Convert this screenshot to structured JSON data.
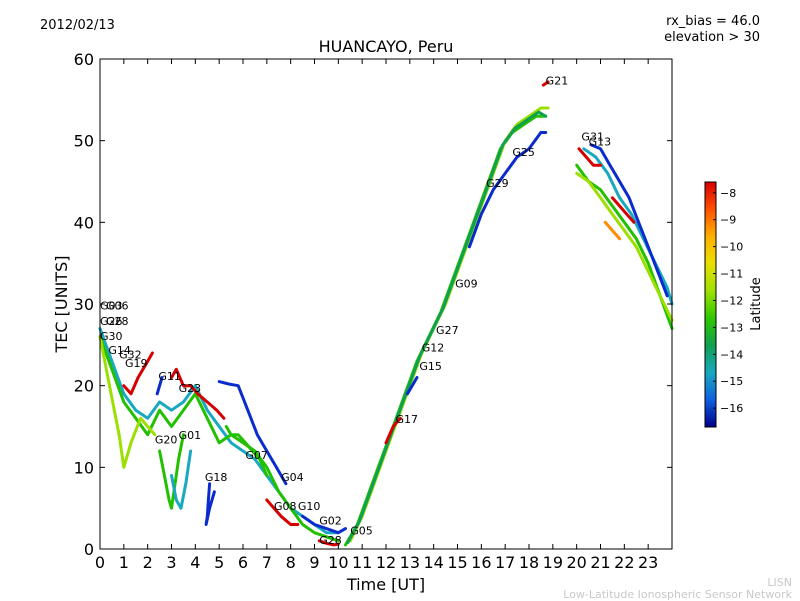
{
  "header": {
    "date": "2012/02/13",
    "bias_line1": "rx_bias = 46.0",
    "bias_line2": "elevation > 30"
  },
  "footer": {
    "line1": "LISN",
    "line2": "Low-Latitude Ionospheric Sensor Network"
  },
  "colors": {
    "red": "#d70000",
    "orange": "#ff8c00",
    "yellow": "#e8e000",
    "lightgreen": "#9be000",
    "green": "#22c000",
    "darkgreen": "#10a050",
    "cyan": "#18a8c0",
    "blue": "#0a2ccc",
    "darkblue": "#00008b"
  },
  "chart_data": {
    "type": "scatter",
    "title": "HUANCAYO, Peru",
    "xlabel": "Time [UT]",
    "ylabel": "TEC [UNITS]",
    "xlim": [
      0,
      24
    ],
    "ylim": [
      0,
      60
    ],
    "xticks": [
      0,
      1,
      2,
      3,
      4,
      5,
      6,
      7,
      8,
      9,
      10,
      11,
      12,
      13,
      14,
      15,
      16,
      17,
      18,
      19,
      20,
      21,
      22,
      23
    ],
    "yticks": [
      0,
      10,
      20,
      30,
      40,
      50,
      60
    ],
    "colorbar": {
      "label": "Latitude",
      "range": [
        -16.7,
        -7.6
      ],
      "ticks": [
        -8,
        -9,
        -10,
        -11,
        -12,
        -13,
        -14,
        -15,
        -16
      ]
    },
    "satellite_labels": [
      {
        "text": "G03",
        "x": 0.0,
        "y": 29.3
      },
      {
        "text": "G06",
        "x": 0.25,
        "y": 29.3
      },
      {
        "text": "G26",
        "x": 0.0,
        "y": 27.4
      },
      {
        "text": "G28",
        "x": 0.25,
        "y": 27.4
      },
      {
        "text": "G30",
        "x": 0.0,
        "y": 25.6
      },
      {
        "text": "G14",
        "x": 0.35,
        "y": 23.9
      },
      {
        "text": "G32",
        "x": 0.8,
        "y": 23.3
      },
      {
        "text": "G19",
        "x": 1.05,
        "y": 22.3
      },
      {
        "text": "G11",
        "x": 2.45,
        "y": 20.7
      },
      {
        "text": "G23",
        "x": 3.3,
        "y": 19.2
      },
      {
        "text": "G01",
        "x": 3.3,
        "y": 13.5
      },
      {
        "text": "G20",
        "x": 2.3,
        "y": 12.9
      },
      {
        "text": "G18",
        "x": 4.4,
        "y": 8.3
      },
      {
        "text": "G07",
        "x": 6.1,
        "y": 11.0
      },
      {
        "text": "G04",
        "x": 7.6,
        "y": 8.3
      },
      {
        "text": "G08",
        "x": 7.3,
        "y": 4.8
      },
      {
        "text": "G10",
        "x": 8.3,
        "y": 4.8
      },
      {
        "text": "G02",
        "x": 9.2,
        "y": 3.0
      },
      {
        "text": "G28",
        "x": 9.2,
        "y": 0.6
      },
      {
        "text": "G05",
        "x": 10.5,
        "y": 1.8
      },
      {
        "text": "G17",
        "x": 12.4,
        "y": 15.4
      },
      {
        "text": "G15",
        "x": 13.4,
        "y": 21.9
      },
      {
        "text": "G12",
        "x": 13.5,
        "y": 24.2
      },
      {
        "text": "G27",
        "x": 14.1,
        "y": 26.3
      },
      {
        "text": "G09",
        "x": 14.9,
        "y": 32.0
      },
      {
        "text": "G29",
        "x": 16.2,
        "y": 44.3
      },
      {
        "text": "G25",
        "x": 17.3,
        "y": 48.1
      },
      {
        "text": "G21",
        "x": 18.7,
        "y": 56.9
      },
      {
        "text": "G31",
        "x": 20.2,
        "y": 50.0
      },
      {
        "text": "G13",
        "x": 20.5,
        "y": 49.4
      }
    ],
    "series": [
      {
        "name": "morning-cyan",
        "color": "cyan",
        "x": [
          0,
          0.5,
          1,
          1.5,
          2,
          2.5,
          3,
          3.5,
          4,
          4.5,
          5,
          5.5,
          6,
          6.5,
          7,
          7.5,
          8,
          8.5,
          9,
          9.5,
          10
        ],
        "y": [
          27,
          23,
          19,
          17,
          16,
          18,
          17,
          18,
          20,
          17,
          15,
          13,
          12,
          11,
          9,
          7,
          5,
          4,
          3,
          2,
          2
        ]
      },
      {
        "name": "morning-green",
        "color": "green",
        "x": [
          0,
          0.5,
          1,
          1.5,
          2,
          2.5,
          3,
          3.5,
          4,
          4.5,
          5,
          5.5,
          6,
          6.5,
          7,
          7.5,
          8,
          8.5,
          9,
          9.5,
          10
        ],
        "y": [
          26,
          22,
          18,
          16,
          14,
          17,
          15,
          17,
          19,
          16,
          13,
          14,
          13,
          12,
          10,
          7,
          5,
          3,
          2,
          1.5,
          1
        ]
      },
      {
        "name": "morning-yellow",
        "color": "lightgreen",
        "x": [
          0,
          0.4,
          0.8,
          1.0,
          1.3,
          1.7,
          2.0,
          2.3
        ],
        "y": [
          26,
          20,
          14,
          10,
          13,
          16,
          15,
          14
        ]
      },
      {
        "name": "early-red",
        "color": "red",
        "x": [
          1,
          1.3,
          1.6,
          2.0,
          2.2
        ],
        "y": [
          20,
          19,
          21,
          23,
          24
        ]
      },
      {
        "name": "g23-red",
        "color": "red",
        "x": [
          3,
          3.2,
          3.5,
          3.8,
          4.1,
          4.5,
          4.9,
          5.2
        ],
        "y": [
          21,
          22,
          20,
          20,
          19,
          18,
          17,
          16
        ]
      },
      {
        "name": "g11-blue",
        "color": "blue",
        "x": [
          2.4,
          2.5,
          2.6
        ],
        "y": [
          19,
          20,
          21
        ]
      },
      {
        "name": "g18-blue",
        "color": "blue",
        "x": [
          4.6,
          4.55,
          4.5,
          4.45,
          4.6,
          4.8
        ],
        "y": [
          8,
          6,
          4,
          3,
          5,
          7
        ]
      },
      {
        "name": "g20-noise",
        "color": "green",
        "x": [
          2.5,
          2.7,
          2.9,
          3.0,
          3.1,
          3.3,
          3.5
        ],
        "y": [
          12,
          9,
          6,
          5,
          7,
          11,
          14
        ]
      },
      {
        "name": "g01-cyan",
        "color": "cyan",
        "x": [
          3.0,
          3.2,
          3.4,
          3.6,
          3.8
        ],
        "y": [
          9,
          6,
          5,
          8,
          12
        ]
      },
      {
        "name": "g07-green",
        "color": "green",
        "x": [
          5.3,
          5.5,
          5.8,
          6.1,
          6.4,
          6.7,
          7.0
        ],
        "y": [
          15,
          14,
          14,
          13,
          12,
          11,
          9
        ]
      },
      {
        "name": "g04-blue",
        "color": "blue",
        "x": [
          5.0,
          5.4,
          5.8,
          6.2,
          6.6,
          7.0,
          7.4,
          7.8
        ],
        "y": [
          20.5,
          20.2,
          20.0,
          17,
          14,
          12,
          10,
          8
        ]
      },
      {
        "name": "g08-red",
        "color": "red",
        "x": [
          7.0,
          7.3,
          7.6,
          8.0,
          8.3
        ],
        "y": [
          6,
          5,
          4,
          3,
          3
        ]
      },
      {
        "name": "noon-blue",
        "color": "blue",
        "x": [
          8.5,
          9.0,
          9.5,
          10.0,
          10.3
        ],
        "y": [
          4,
          3,
          2.5,
          2,
          2.5
        ]
      },
      {
        "name": "g28-red",
        "color": "red",
        "x": [
          9.2,
          9.5,
          9.8,
          10.0
        ],
        "y": [
          1,
          0.7,
          0.5,
          0.6
        ]
      },
      {
        "name": "rise-green",
        "color": "green",
        "x": [
          10.3,
          10.8,
          11.3,
          11.8,
          12.3,
          12.8,
          13.3,
          13.8,
          14.3,
          14.8,
          15.3,
          15.8,
          16.3,
          16.8,
          17.3,
          17.8,
          18.3,
          18.7
        ],
        "y": [
          0.5,
          3,
          7,
          11,
          15,
          19,
          23,
          26,
          29,
          33,
          37,
          41,
          45,
          49,
          51,
          52,
          53,
          53
        ]
      },
      {
        "name": "rise-yellow",
        "color": "lightgreen",
        "x": [
          10.5,
          11.0,
          11.5,
          12.0,
          12.5,
          13.0,
          13.5,
          14.0,
          14.5,
          15.0,
          15.5,
          16.0,
          16.5,
          17.0,
          17.5,
          18.0,
          18.5,
          18.8
        ],
        "y": [
          1,
          4,
          8,
          12,
          16,
          20,
          24,
          27,
          30,
          34,
          38,
          42,
          46,
          50,
          52,
          53,
          54,
          54
        ]
      },
      {
        "name": "rise-darkgreen",
        "color": "darkgreen",
        "x": [
          10.4,
          10.9,
          11.4,
          11.9,
          12.4,
          12.9,
          13.4,
          13.9,
          14.4,
          14.9,
          15.4,
          15.9,
          16.4,
          16.9,
          17.4,
          17.9,
          18.4,
          18.7
        ],
        "y": [
          0.8,
          3.5,
          7.5,
          11.5,
          15.5,
          19.5,
          23.5,
          26.5,
          29.5,
          33.5,
          37.5,
          41.5,
          45.5,
          49.5,
          51.5,
          52.5,
          53.5,
          53
        ]
      },
      {
        "name": "g25-blue",
        "color": "blue",
        "x": [
          15.5,
          16.0,
          16.5,
          17.0,
          17.5,
          18.0,
          18.5,
          18.7
        ],
        "y": [
          37,
          41,
          44,
          46,
          48,
          49,
          51,
          51
        ]
      },
      {
        "name": "g21-red",
        "color": "red",
        "x": [
          18.6,
          18.8
        ],
        "y": [
          56.8,
          57.2
        ]
      },
      {
        "name": "g17-red",
        "color": "red",
        "x": [
          12.0,
          12.3,
          12.6
        ],
        "y": [
          13,
          15,
          16
        ]
      },
      {
        "name": "g15-blue",
        "color": "blue",
        "x": [
          12.9,
          13.1,
          13.3
        ],
        "y": [
          19,
          20,
          21
        ]
      },
      {
        "name": "eve-green",
        "color": "green",
        "x": [
          20.0,
          20.5,
          21.0,
          21.5,
          22.0,
          22.5,
          23.0,
          23.5,
          24.0
        ],
        "y": [
          47,
          45,
          44,
          42,
          40,
          38,
          35,
          31,
          27
        ]
      },
      {
        "name": "eve-cyan",
        "color": "cyan",
        "x": [
          20.3,
          20.8,
          21.3,
          21.8,
          22.3,
          22.8,
          23.3,
          23.8,
          24.0
        ],
        "y": [
          49,
          48,
          46,
          43,
          41,
          38,
          35,
          32,
          30
        ]
      },
      {
        "name": "eve-yellow",
        "color": "lightgreen",
        "x": [
          20.0,
          20.5,
          21.0,
          21.5,
          22.0,
          22.5,
          23.0,
          23.5,
          24.0
        ],
        "y": [
          46,
          45,
          43,
          41,
          39,
          37,
          34,
          31,
          28
        ]
      },
      {
        "name": "eve-blue",
        "color": "blue",
        "x": [
          20.6,
          21.0,
          21.4,
          21.8,
          22.2,
          22.6,
          23.0,
          23.4,
          23.8
        ],
        "y": [
          49.5,
          49,
          47,
          45,
          43,
          40,
          37,
          34,
          31
        ]
      },
      {
        "name": "eve-red",
        "color": "red",
        "x": [
          20.1,
          20.4,
          20.7,
          21.0
        ],
        "y": [
          49,
          48,
          47,
          47
        ]
      },
      {
        "name": "eve-red2",
        "color": "red",
        "x": [
          21.5,
          21.8,
          22.1,
          22.4
        ],
        "y": [
          43,
          42,
          41,
          40
        ]
      },
      {
        "name": "eve-orange",
        "color": "orange",
        "x": [
          21.2,
          21.5,
          21.8
        ],
        "y": [
          40,
          39,
          38
        ]
      }
    ]
  }
}
